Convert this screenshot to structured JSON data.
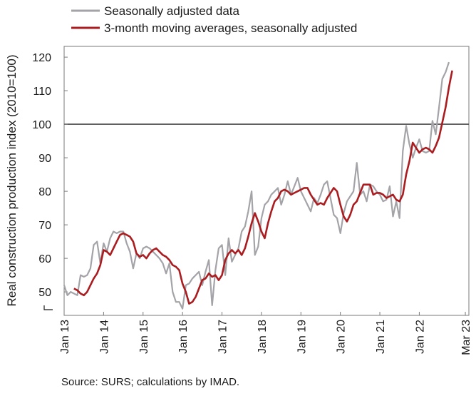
{
  "chart_data": {
    "type": "line",
    "xlabel": "",
    "ylabel": "Real construction production index (2010=100)",
    "ylim": [
      43,
      121
    ],
    "y_ticks": [
      50,
      60,
      70,
      80,
      90,
      100,
      110,
      120
    ],
    "y_tick_labels": [
      "50",
      "60",
      "70",
      "80",
      "90",
      "100",
      "110",
      "120"
    ],
    "x_tick_labels": [
      "Jan 13",
      "Jan 14",
      "Jan 15",
      "Jan 16",
      "Jan 17",
      "Jan 18",
      "Jan 19",
      "Jan 20",
      "Jan 21",
      "Jan 22",
      "Mar 23"
    ],
    "x_tick_months": [
      0,
      12,
      24,
      36,
      48,
      60,
      72,
      84,
      96,
      108,
      122
    ],
    "reference_line": {
      "y": 100,
      "color": "#4a4a4a"
    },
    "grid": false,
    "legend_position": "top-left",
    "series": [
      {
        "name": "Seasonally adjusted data",
        "color": "#a3a3a8",
        "values": [
          52.0,
          49.0,
          50.0,
          49.5,
          49.0,
          55.0,
          54.5,
          55.0,
          57.0,
          64.0,
          65.0,
          58.5,
          64.5,
          62.0,
          66.0,
          68.0,
          67.5,
          68.0,
          68.0,
          64.5,
          62.0,
          57.0,
          61.5,
          60.0,
          63.0,
          63.5,
          63.0,
          62.0,
          61.0,
          60.0,
          58.5,
          55.5,
          58.5,
          50.0,
          47.0,
          47.0,
          45.0,
          52.0,
          52.5,
          54.0,
          55.0,
          56.0,
          52.0,
          56.0,
          59.5,
          46.0,
          56.5,
          63.0,
          64.0,
          55.0,
          66.0,
          59.0,
          61.0,
          63.0,
          68.0,
          69.5,
          74.0,
          80.0,
          61.0,
          63.5,
          72.0,
          76.0,
          77.0,
          79.0,
          80.0,
          81.0,
          76.0,
          79.0,
          83.0,
          79.0,
          81.5,
          84.0,
          80.0,
          78.0,
          76.0,
          74.0,
          78.0,
          76.5,
          79.0,
          82.0,
          83.0,
          78.0,
          73.0,
          72.0,
          67.5,
          73.5,
          77.0,
          78.5,
          80.0,
          88.5,
          79.0,
          80.0,
          77.0,
          82.0,
          81.5,
          80.0,
          79.0,
          77.0,
          77.5,
          81.5,
          72.5,
          77.0,
          72.0,
          92.0,
          99.5,
          94.0,
          90.0,
          93.0,
          95.5,
          92.0,
          91.5,
          92.0,
          101.0,
          97.0,
          105.0,
          113.5,
          115.5,
          118.5
        ],
        "x_start_month": 0
      },
      {
        "name": "3-month moving averages, seasonally adjusted",
        "color": "#aa1c1f",
        "values": [
          51.0,
          50.5,
          49.5,
          49.0,
          50.0,
          52.0,
          54.0,
          55.5,
          58.0,
          62.5,
          62.0,
          61.0,
          63.0,
          65.0,
          67.0,
          67.5,
          67.0,
          66.5,
          65.0,
          61.5,
          60.5,
          61.0,
          60.0,
          61.5,
          62.5,
          63.0,
          62.0,
          61.0,
          60.5,
          59.5,
          58.0,
          57.5,
          56.5,
          52.5,
          50.0,
          46.5,
          47.0,
          48.5,
          51.0,
          53.5,
          54.0,
          55.5,
          54.5,
          55.0,
          53.5,
          55.0,
          59.5,
          61.5,
          62.5,
          61.5,
          62.5,
          61.0,
          63.0,
          66.5,
          70.5,
          73.5,
          71.0,
          68.0,
          66.0,
          70.5,
          74.0,
          77.0,
          78.0,
          80.0,
          80.5,
          80.0,
          79.0,
          79.5,
          80.0,
          80.5,
          81.0,
          81.0,
          79.0,
          77.5,
          76.0,
          76.5,
          76.0,
          78.0,
          79.5,
          81.0,
          80.0,
          76.0,
          72.5,
          71.0,
          73.0,
          76.0,
          77.0,
          79.5,
          82.0,
          82.0,
          82.0,
          79.0,
          79.5,
          79.5,
          79.0,
          78.0,
          78.5,
          79.0,
          77.5,
          77.0,
          79.0,
          85.0,
          89.0,
          94.5,
          93.0,
          91.5,
          92.5,
          93.0,
          92.5,
          91.5,
          93.5,
          96.0,
          100.5,
          105.0,
          111.0,
          116.0
        ],
        "x_start_month": 3
      }
    ]
  },
  "source_text": "Source: SURS; calculations by IMAD."
}
